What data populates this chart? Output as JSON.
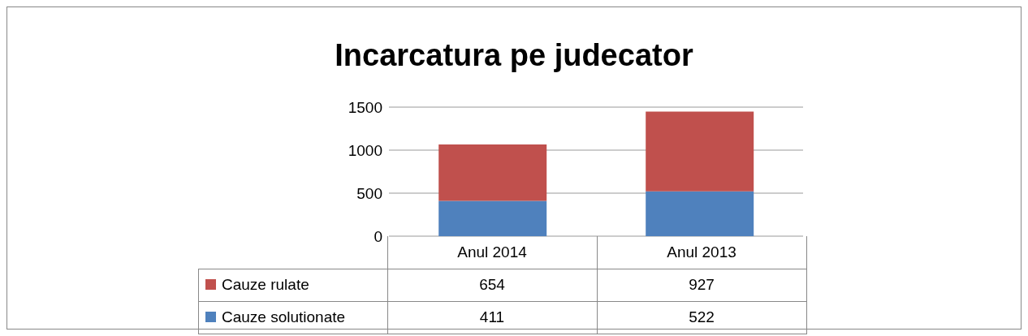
{
  "chart_data": {
    "type": "bar",
    "title": "Incarcatura pe judecator",
    "categories": [
      "Anul 2014",
      "Anul 2013"
    ],
    "stacked": true,
    "series": [
      {
        "name": "Cauze solutionate",
        "color": "#4f81bd",
        "values": [
          411,
          522
        ]
      },
      {
        "name": "Cauze rulate",
        "color": "#c0504d",
        "values": [
          654,
          927
        ]
      }
    ],
    "ylim": [
      0,
      1500
    ],
    "yticks": [
      0,
      500,
      1000,
      1500
    ],
    "grid": "y",
    "legend": "bottom left",
    "data_labels": true
  }
}
